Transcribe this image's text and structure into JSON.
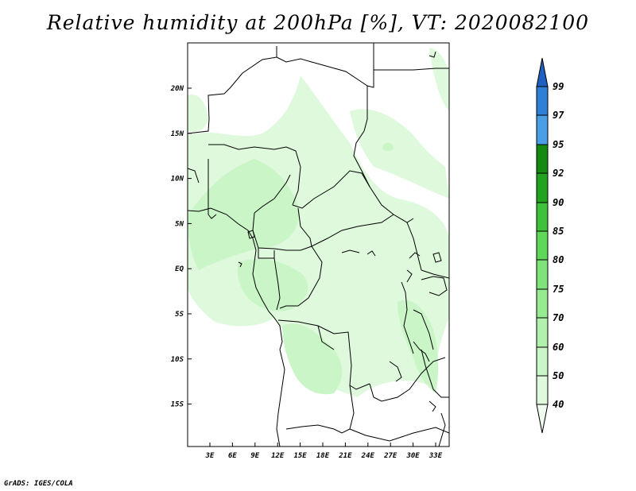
{
  "title": "Relative humidity at 200hPa [%], VT: 2020082100",
  "credit": "GrADS: IGES/COLA",
  "map": {
    "lon_labels": [
      "3E",
      "6E",
      "9E",
      "12E",
      "15E",
      "18E",
      "21E",
      "24E",
      "27E",
      "30E",
      "33E"
    ],
    "lat_labels": [
      "20N",
      "15N",
      "10N",
      "5N",
      "EQ",
      "5S",
      "10S",
      "15S"
    ]
  },
  "colorbar": {
    "levels": [
      "40",
      "50",
      "60",
      "70",
      "75",
      "80",
      "85",
      "90",
      "92",
      "95",
      "97",
      "99"
    ],
    "colors": [
      "#f0fcf0",
      "#def9dc",
      "#c9f5c7",
      "#b1f0ad",
      "#96ea90",
      "#7fe37a",
      "#5fd85a",
      "#3fc23a",
      "#22a31f",
      "#148a12",
      "#4a9ee6",
      "#2f7fd6",
      "#1e5fc0"
    ]
  },
  "field_colors": {
    "light": "#def9dc",
    "mid": "#c9f5c7"
  }
}
